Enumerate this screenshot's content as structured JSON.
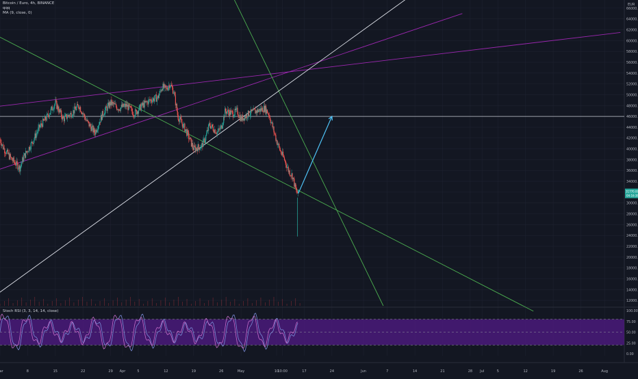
{
  "chart_data": {
    "type": "candlestick",
    "title": "Bitcoin / Euro, 4h, BINANCE",
    "currency": "EUR",
    "symbol_price": "31770.00",
    "symbol_price_sub": "04:16:38",
    "price_axis": [
      {
        "value": 66000,
        "label": "66000.00"
      },
      {
        "value": 64000,
        "label": "64000.00"
      },
      {
        "value": 62000,
        "label": "62000.00"
      },
      {
        "value": 60000,
        "label": "60000.00"
      },
      {
        "value": 58000,
        "label": "58000.00"
      },
      {
        "value": 56000,
        "label": "56000.00"
      },
      {
        "value": 54000,
        "label": "54000.00"
      },
      {
        "value": 52000,
        "label": "52000.00"
      },
      {
        "value": 50000,
        "label": "50000.00"
      },
      {
        "value": 48000,
        "label": "48000.00"
      },
      {
        "value": 46000,
        "label": "46000.00"
      },
      {
        "value": 44000,
        "label": "44000.00"
      },
      {
        "value": 42000,
        "label": "42000.00"
      },
      {
        "value": 40000,
        "label": "40000.00"
      },
      {
        "value": 38000,
        "label": "38000.00"
      },
      {
        "value": 36000,
        "label": "36000.00"
      },
      {
        "value": 34000,
        "label": "34000.00"
      },
      {
        "value": 32000,
        "label": "32000.00"
      },
      {
        "value": 30000,
        "label": "30000.00"
      },
      {
        "value": 28000,
        "label": "28000.00"
      },
      {
        "value": 26000,
        "label": "26000.00"
      },
      {
        "value": 24000,
        "label": "24000.00"
      },
      {
        "value": 22000,
        "label": "22000.00"
      },
      {
        "value": 20000,
        "label": "20000.00"
      },
      {
        "value": 18000,
        "label": "18000.00"
      },
      {
        "value": 16000,
        "label": "16000.00"
      },
      {
        "value": 14000,
        "label": "14000.00"
      },
      {
        "value": 12000,
        "label": "12000.00"
      }
    ],
    "time_axis": [
      {
        "label": "Mar",
        "day": 1
      },
      {
        "label": "8",
        "day": 8
      },
      {
        "label": "15",
        "day": 15
      },
      {
        "label": "22",
        "day": 22
      },
      {
        "label": "29",
        "day": 29
      },
      {
        "label": "Apr",
        "day": 32
      },
      {
        "label": "5",
        "day": 36
      },
      {
        "label": "12",
        "day": 43
      },
      {
        "label": "19",
        "day": 50
      },
      {
        "label": "26",
        "day": 57
      },
      {
        "label": "May",
        "day": 62
      },
      {
        "label": "10",
        "day": 71
      },
      {
        "label": "10:00",
        "day": 72.5
      },
      {
        "label": "17",
        "day": 78
      },
      {
        "label": "24",
        "day": 85
      },
      {
        "label": "Jun",
        "day": 93
      },
      {
        "label": "7",
        "day": 99
      },
      {
        "label": "14",
        "day": 106
      },
      {
        "label": "21",
        "day": 113
      },
      {
        "label": "28",
        "day": 120
      },
      {
        "label": "Jul",
        "day": 123
      },
      {
        "label": "5",
        "day": 127
      },
      {
        "label": "12",
        "day": 134
      },
      {
        "label": "19",
        "day": 141
      },
      {
        "label": "26",
        "day": 148
      },
      {
        "label": "Aug",
        "day": 154
      }
    ],
    "price_path": [
      [
        0,
        43500
      ],
      [
        2,
        40000
      ],
      [
        4,
        38000
      ],
      [
        6,
        36500
      ],
      [
        7,
        38500
      ],
      [
        9,
        41000
      ],
      [
        11,
        44000
      ],
      [
        13,
        46000
      ],
      [
        15,
        48500
      ],
      [
        17,
        45500
      ],
      [
        19,
        46500
      ],
      [
        21,
        48000
      ],
      [
        23,
        45000
      ],
      [
        25,
        43000
      ],
      [
        27,
        46500
      ],
      [
        29,
        48500
      ],
      [
        31,
        47500
      ],
      [
        33,
        48000
      ],
      [
        35,
        46500
      ],
      [
        37,
        48000
      ],
      [
        39,
        49000
      ],
      [
        41,
        49500
      ],
      [
        42,
        51500
      ],
      [
        43,
        51000
      ],
      [
        44,
        52000
      ],
      [
        45,
        50500
      ],
      [
        46,
        46000
      ],
      [
        48,
        43500
      ],
      [
        50,
        40000
      ],
      [
        52,
        40500
      ],
      [
        53,
        42000
      ],
      [
        54,
        44500
      ],
      [
        56,
        43000
      ],
      [
        57,
        44000
      ],
      [
        58,
        47000
      ],
      [
        60,
        46500
      ],
      [
        61,
        47000
      ],
      [
        62,
        45500
      ],
      [
        64,
        46500
      ],
      [
        66,
        47000
      ],
      [
        68,
        47500
      ],
      [
        69,
        46500
      ],
      [
        70,
        44000
      ],
      [
        71,
        41500
      ],
      [
        72,
        39500
      ],
      [
        73,
        38000
      ],
      [
        74,
        36000
      ],
      [
        75,
        35000
      ],
      [
        76,
        32000
      ],
      [
        76.5,
        31770
      ]
    ],
    "horizontal_level": 46000,
    "trendlines": [
      {
        "name": "purple-upper",
        "color": "#9c27b0",
        "from": [
          0,
          47800
        ],
        "to": [
          158,
          61500
        ]
      },
      {
        "name": "purple-lower",
        "color": "#9c27b0",
        "from": [
          0,
          36000
        ],
        "to": [
          118,
          65000
        ]
      },
      {
        "name": "green-descending-long",
        "color": "#4caf50",
        "from": [
          0,
          61000
        ],
        "to": [
          136,
          10000
        ]
      },
      {
        "name": "green-descending-steep",
        "color": "#4caf50",
        "from": [
          58,
          71000
        ],
        "to": [
          98,
          11000
        ]
      },
      {
        "name": "white-ascending",
        "color": "#e0e3eb",
        "from": [
          0,
          13000
        ],
        "to": [
          112,
          72000
        ]
      }
    ],
    "arrow": {
      "color": "#4fc3f7",
      "from": [
        76.5,
        31770
      ],
      "to": [
        85,
        46000
      ]
    },
    "indicator": {
      "name": "Stoch RSI (3, 3, 14, 14, close)",
      "levels": [
        {
          "value": 100,
          "label": "100.00"
        },
        {
          "value": 75,
          "label": "75.00"
        },
        {
          "value": 50,
          "label": "50.00"
        },
        {
          "value": 25,
          "label": "25.00"
        },
        {
          "value": 0,
          "label": "0.00"
        }
      ],
      "band": [
        20,
        80
      ]
    },
    "legend": [
      "Bitcoin / Euro, 4h, BINANCE",
      "qqq",
      "MA (9, close, 0)"
    ]
  }
}
